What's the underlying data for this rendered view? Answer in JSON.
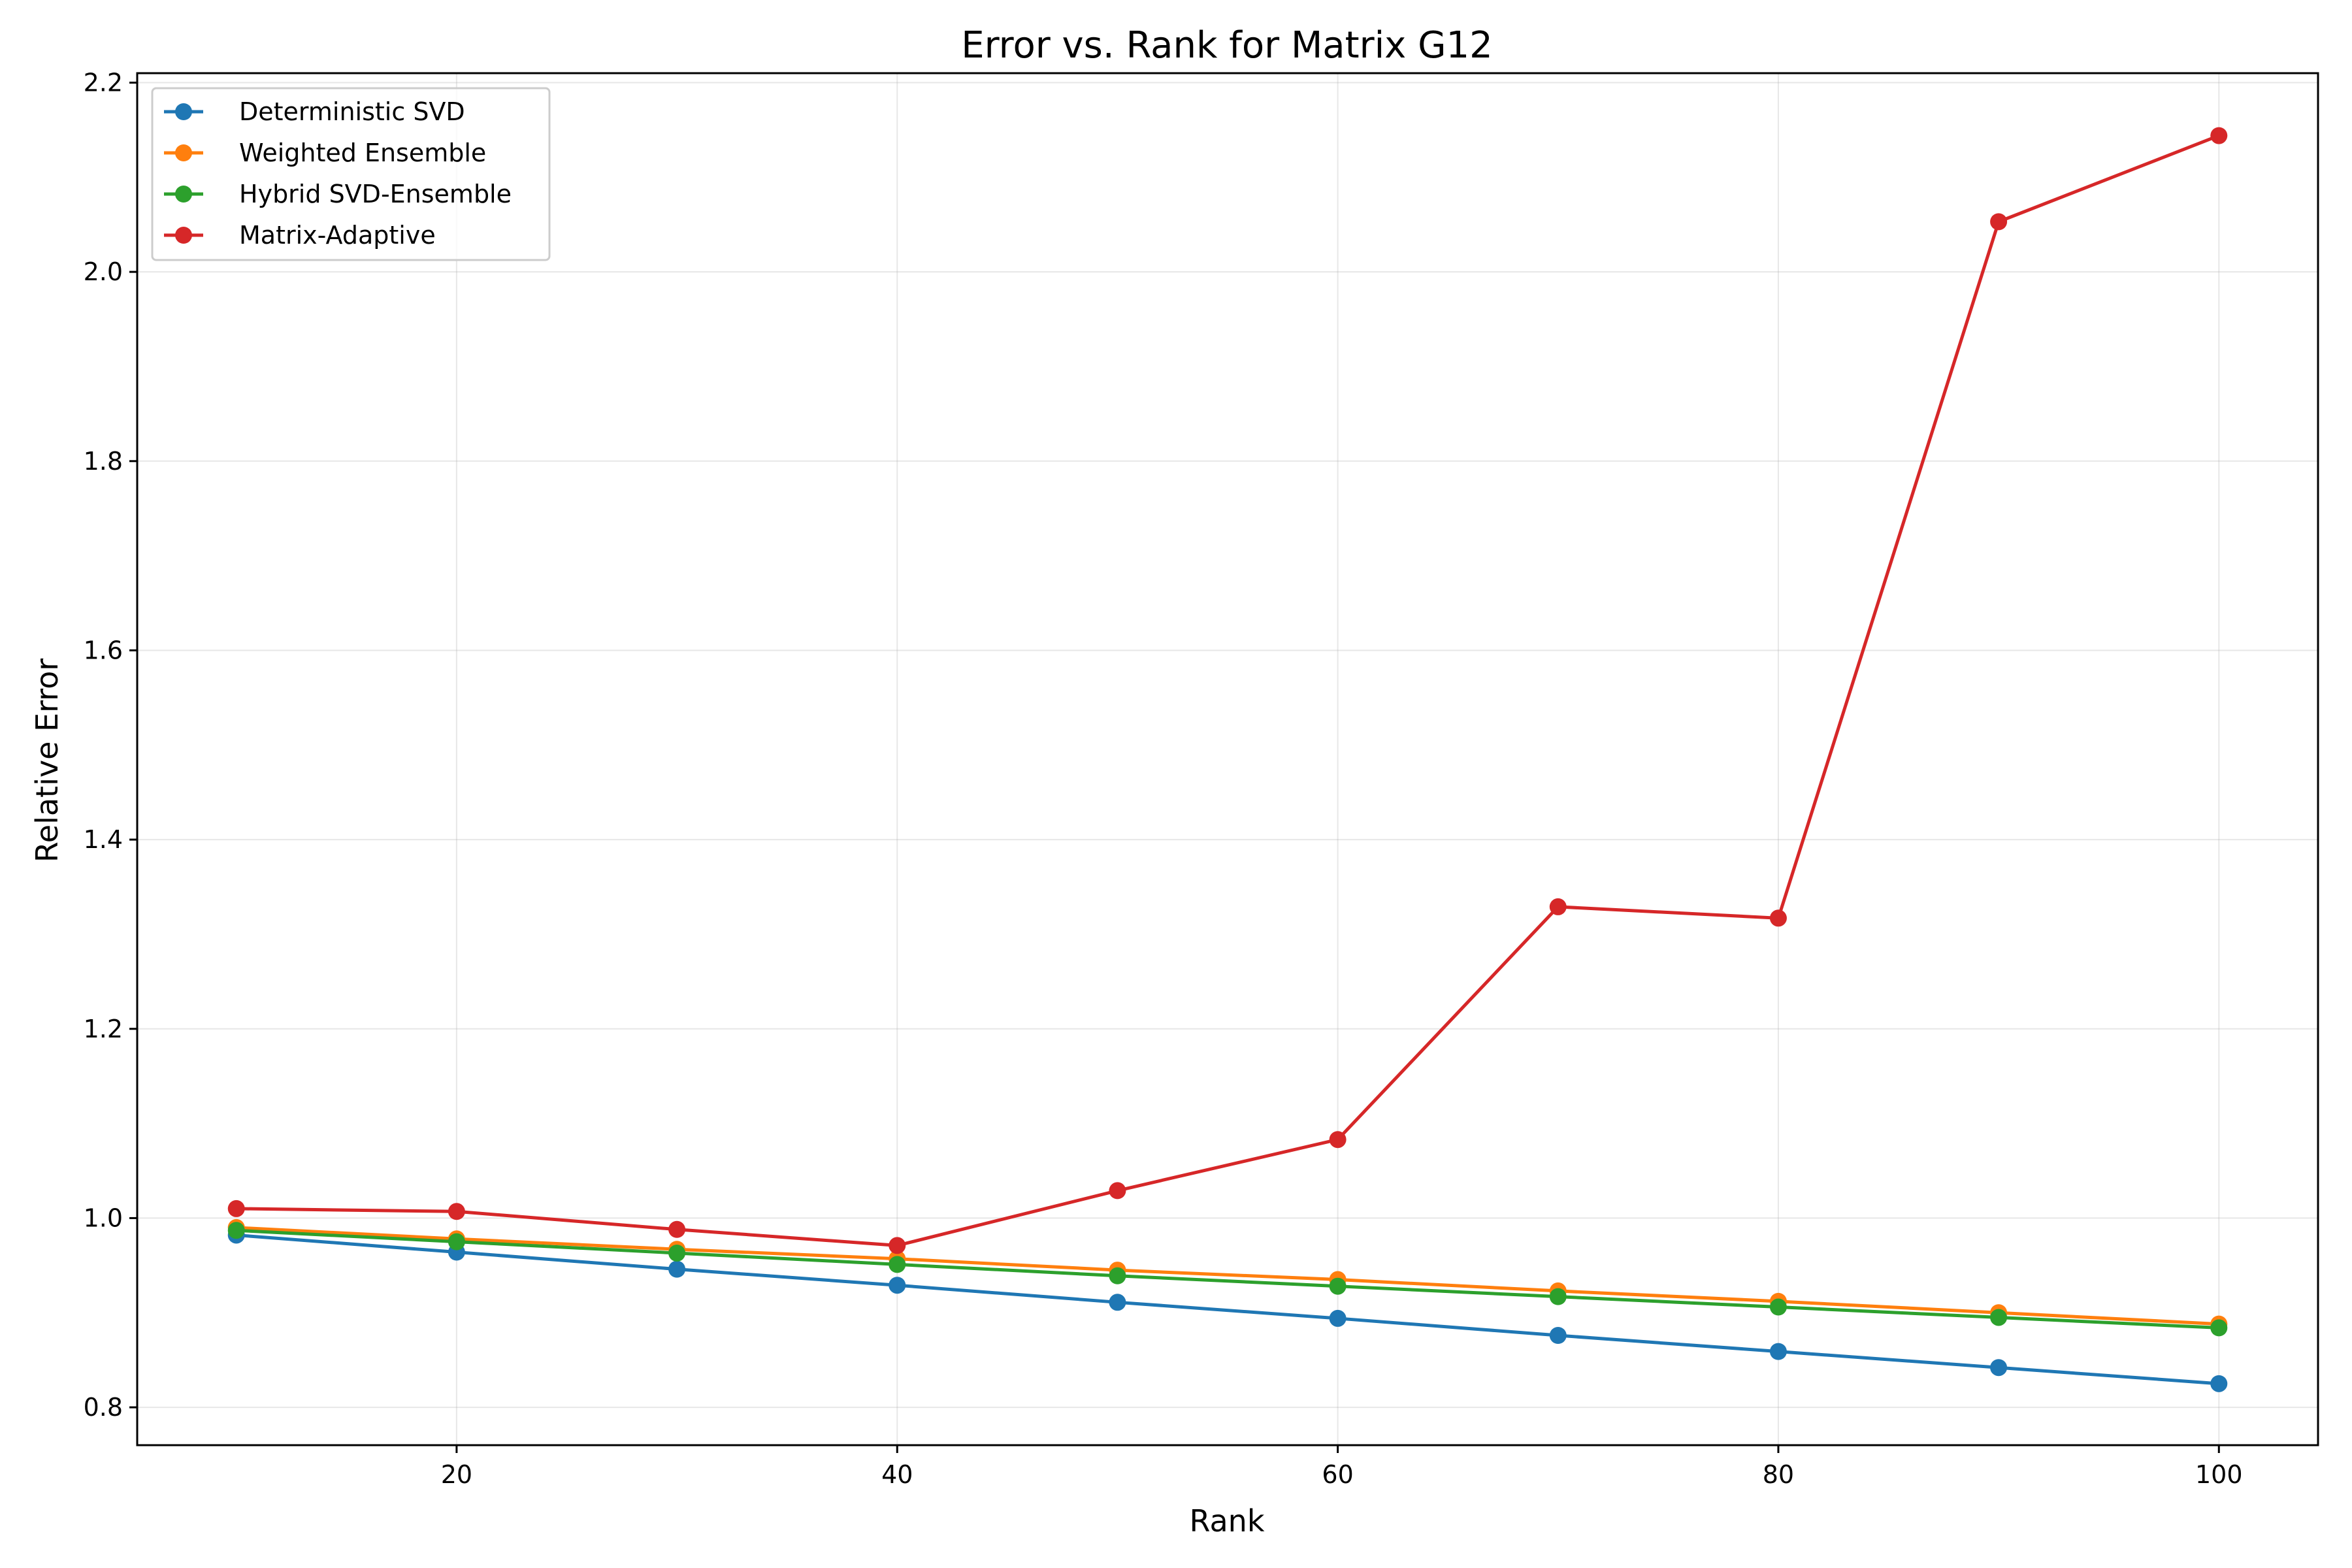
{
  "chart_data": {
    "type": "line",
    "title": "Error vs. Rank for Matrix G12",
    "xlabel": "Rank",
    "ylabel": "Relative Error",
    "x": [
      10,
      20,
      30,
      40,
      50,
      60,
      70,
      80,
      90,
      100
    ],
    "xlim": [
      5.5,
      104.5
    ],
    "ylim": [
      0.76,
      2.21
    ],
    "xticks": [
      20,
      40,
      60,
      80,
      100
    ],
    "xtick_labels": [
      "20",
      "40",
      "60",
      "80",
      "100"
    ],
    "yticks": [
      0.8,
      1.0,
      1.2,
      1.4,
      1.6,
      1.8,
      2.0,
      2.2
    ],
    "ytick_labels": [
      "0.8",
      "1.0",
      "1.2",
      "1.4",
      "1.6",
      "1.8",
      "2.0",
      "2.2"
    ],
    "grid": true,
    "legend_position": "top-left",
    "series": [
      {
        "name": "Deterministic SVD",
        "color": "#1f77b4",
        "values": [
          0.982,
          0.964,
          0.946,
          0.929,
          0.911,
          0.894,
          0.876,
          0.859,
          0.842,
          0.825
        ]
      },
      {
        "name": "Weighted Ensemble",
        "color": "#ff7f0e",
        "values": [
          0.99,
          0.978,
          0.967,
          0.957,
          0.945,
          0.935,
          0.923,
          0.912,
          0.9,
          0.888
        ]
      },
      {
        "name": "Hybrid SVD-Ensemble",
        "color": "#2ca02c",
        "values": [
          0.987,
          0.975,
          0.963,
          0.951,
          0.939,
          0.928,
          0.917,
          0.906,
          0.895,
          0.884
        ]
      },
      {
        "name": "Matrix-Adaptive",
        "color": "#d62728",
        "values": [
          1.01,
          1.007,
          0.988,
          0.971,
          1.029,
          1.083,
          1.329,
          1.317,
          2.053,
          2.144
        ]
      }
    ]
  }
}
